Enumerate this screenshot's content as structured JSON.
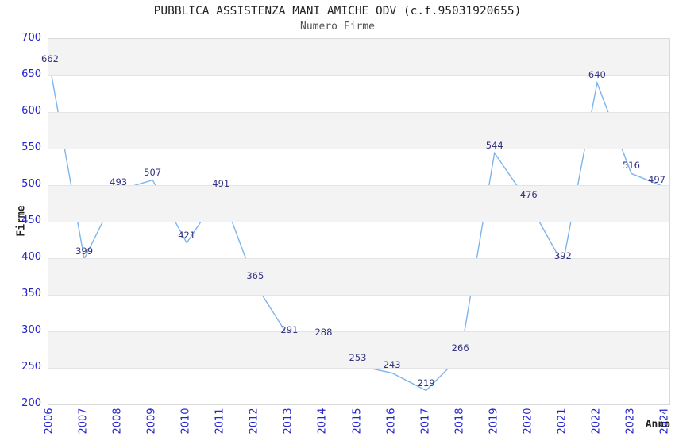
{
  "header": {
    "title": "PUBBLICA ASSISTENZA MANI AMICHE ODV (c.f.95031920655)",
    "subtitle": "Numero Firme"
  },
  "chart_data": {
    "type": "line",
    "title": "PUBBLICA ASSISTENZA MANI AMICHE ODV (c.f.95031920655)",
    "subtitle": "Numero Firme",
    "xlabel": "Anno",
    "ylabel": "Firme",
    "x": [
      2006,
      2007,
      2008,
      2009,
      2010,
      2011,
      2012,
      2013,
      2014,
      2015,
      2016,
      2017,
      2018,
      2019,
      2020,
      2021,
      2022,
      2023,
      2024
    ],
    "values": [
      662,
      399,
      493,
      507,
      421,
      491,
      365,
      291,
      288,
      253,
      243,
      219,
      266,
      544,
      476,
      392,
      640,
      516,
      497
    ],
    "ylim": [
      200,
      700
    ],
    "ytick_step": 50,
    "data_labels": true,
    "legend": "none",
    "grid": "horizontal",
    "colors": {
      "line": "#7cb5ec",
      "point_label": "#333380",
      "axis_tick_label": "#2424cc",
      "axis_title": "#222222",
      "band": "#f3f3f3",
      "gridline": "#e4e4e4",
      "plot_border": "#d9d9d9"
    }
  }
}
